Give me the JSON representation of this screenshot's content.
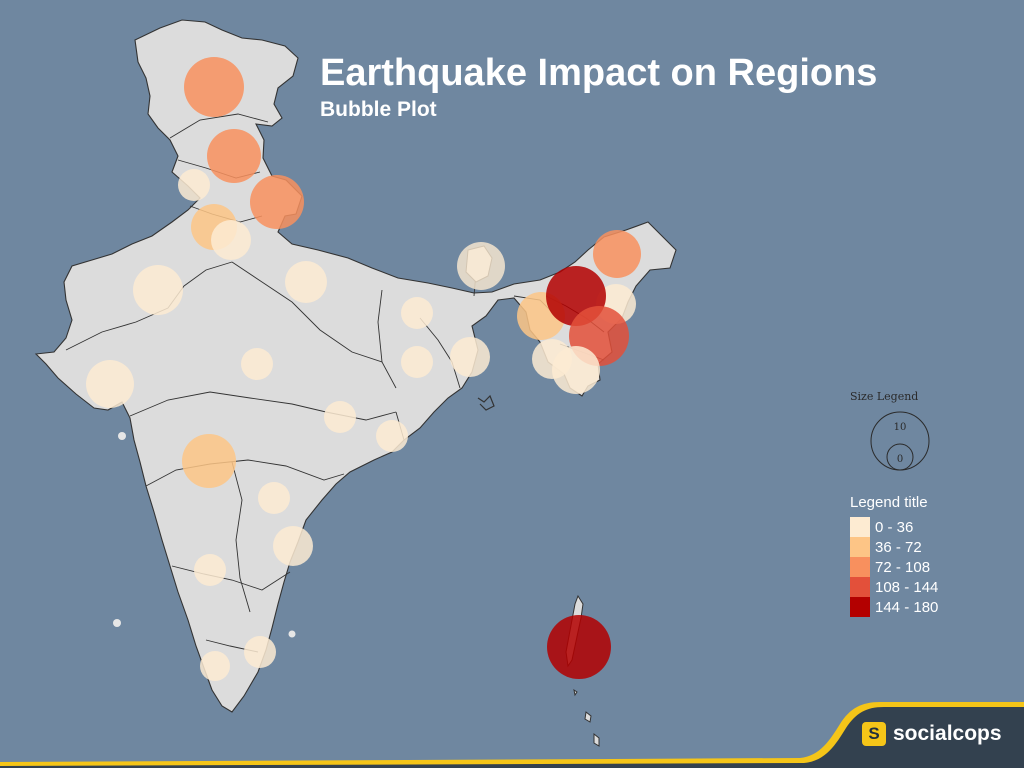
{
  "title": "Earthquake Impact on Regions",
  "subtitle": "Bubble Plot",
  "size_legend": {
    "title": "Size Legend",
    "large_label": "10",
    "small_label": "0"
  },
  "color_legend": {
    "title": "Legend title",
    "items": [
      {
        "label": "0 - 36",
        "color": "#fdebd2"
      },
      {
        "label": "36 - 72",
        "color": "#fdc586"
      },
      {
        "label": "72 - 108",
        "color": "#f8905e"
      },
      {
        "label": "108 - 144",
        "color": "#e3503a"
      },
      {
        "label": "144 - 180",
        "color": "#b30000"
      }
    ]
  },
  "brand": {
    "logo_letter": "S",
    "name": "socialcops",
    "accent": "#f5c518",
    "dark": "#33414f"
  },
  "colors": {
    "background": "#6f87a0",
    "land": "#dcdcdc",
    "border": "#333333",
    "bubble_0_36": "#fdebd2",
    "bubble_36_72": "#fdc586",
    "bubble_72_108": "#f8905e",
    "bubble_108_144": "#e3503a",
    "bubble_144_180": "#b30000"
  },
  "chart_data": {
    "type": "bubble-map",
    "bins": [
      "0 - 36",
      "36 - 72",
      "72 - 108",
      "108 - 144",
      "144 - 180"
    ]
  }
}
